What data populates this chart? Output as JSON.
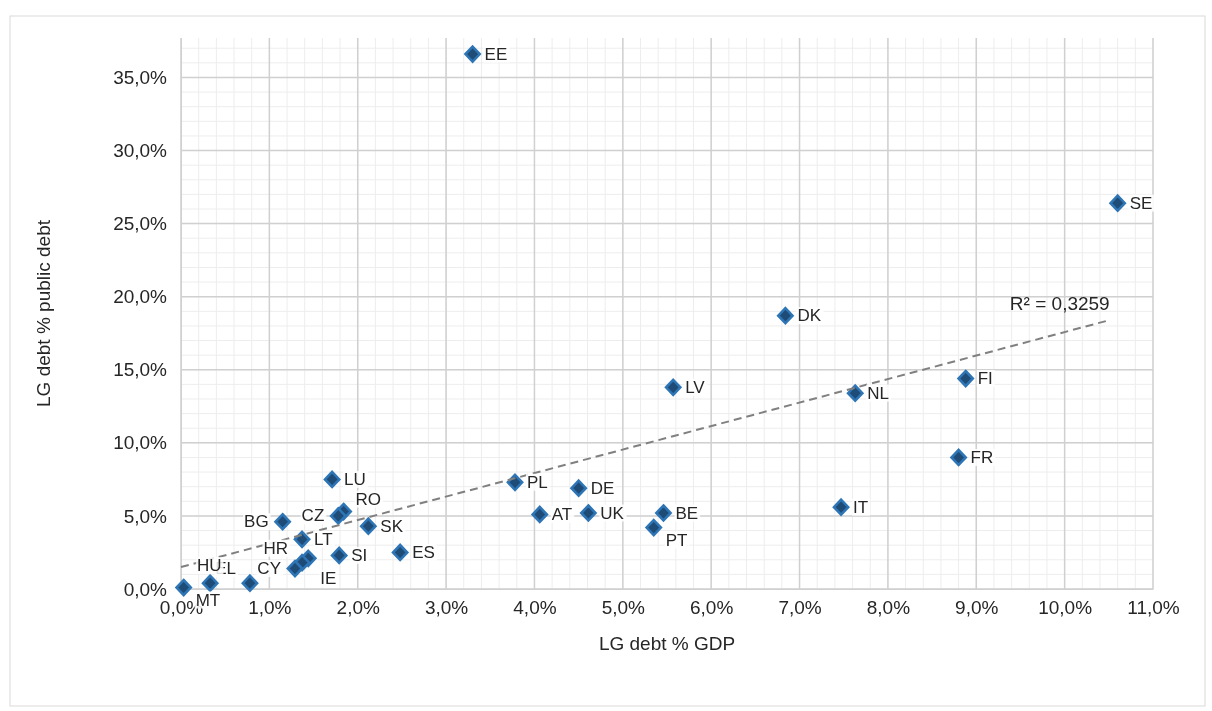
{
  "chart_data": {
    "type": "scatter",
    "xlabel": "LG debt % GDP",
    "ylabel": "LG debt % public debt",
    "xlim": [
      0,
      11
    ],
    "ylim": [
      0,
      37.7
    ],
    "xticks": [
      {
        "value": 0,
        "label": "0,0%"
      },
      {
        "value": 1,
        "label": "1,0%"
      },
      {
        "value": 2,
        "label": "2,0%"
      },
      {
        "value": 3,
        "label": "3,0%"
      },
      {
        "value": 4,
        "label": "4,0%"
      },
      {
        "value": 5,
        "label": "5,0%"
      },
      {
        "value": 6,
        "label": "6,0%"
      },
      {
        "value": 7,
        "label": "7,0%"
      },
      {
        "value": 8,
        "label": "8,0%"
      },
      {
        "value": 9,
        "label": "9,0%"
      },
      {
        "value": 10,
        "label": "10,0%"
      },
      {
        "value": 11,
        "label": "11,0%"
      }
    ],
    "yticks": [
      {
        "value": 0,
        "label": "0,0%"
      },
      {
        "value": 5,
        "label": "5,0%"
      },
      {
        "value": 10,
        "label": "10,0%"
      },
      {
        "value": 15,
        "label": "15,0%"
      },
      {
        "value": 20,
        "label": "20,0%"
      },
      {
        "value": 25,
        "label": "25,0%"
      },
      {
        "value": 30,
        "label": "30,0%"
      },
      {
        "value": 35,
        "label": "35,0%"
      }
    ],
    "grid": true,
    "series": [
      {
        "color": "#2e75b6",
        "marker": "diamond",
        "x": [
          3.3,
          10.6,
          6.84,
          5.57,
          7.63,
          8.88,
          8.8,
          7.47,
          3.78,
          4.5,
          4.06,
          4.61,
          5.46,
          5.35,
          1.71,
          1.84,
          1.78,
          2.12,
          1.15,
          1.37,
          2.48,
          1.79,
          1.44,
          1.37,
          1.29,
          0.78,
          0.33,
          0.03
        ],
        "values": [
          36.6,
          26.4,
          18.7,
          13.8,
          13.4,
          14.4,
          9.0,
          5.6,
          7.3,
          6.9,
          5.1,
          5.2,
          5.2,
          4.2,
          7.5,
          5.3,
          5.0,
          4.3,
          4.6,
          3.4,
          2.5,
          2.3,
          2.1,
          1.8,
          1.4,
          0.4,
          0.4,
          0.1
        ]
      },
      {
        "type": "line",
        "color": "#808080",
        "marker": "none",
        "line_style": "dashed",
        "x": [
          0,
          10.51
        ],
        "values": [
          1.5,
          18.4
        ]
      }
    ],
    "annotations": [
      {
        "text": "EE",
        "x": 3.3,
        "y": 36.6
      },
      {
        "text": "SE",
        "x": 10.6,
        "y": 26.4
      },
      {
        "text": "DK",
        "x": 6.84,
        "y": 18.7
      },
      {
        "text": "LV",
        "x": 5.57,
        "y": 13.8
      },
      {
        "text": "NL",
        "x": 7.63,
        "y": 13.4
      },
      {
        "text": "FI",
        "x": 8.88,
        "y": 14.4
      },
      {
        "text": "FR",
        "x": 8.8,
        "y": 9.0
      },
      {
        "text": "IT",
        "x": 7.47,
        "y": 5.6
      },
      {
        "text": "PL",
        "x": 3.78,
        "y": 7.3
      },
      {
        "text": "DE",
        "x": 4.5,
        "y": 6.9
      },
      {
        "text": "AT",
        "x": 4.06,
        "y": 5.1
      },
      {
        "text": "UK",
        "x": 4.61,
        "y": 5.2
      },
      {
        "text": "BE",
        "x": 5.46,
        "y": 5.2
      },
      {
        "text": "PT",
        "x": 5.35,
        "y": 4.2
      },
      {
        "text": "LU",
        "x": 1.71,
        "y": 7.5
      },
      {
        "text": "RO",
        "x": 1.84,
        "y": 5.3
      },
      {
        "text": "CZ",
        "x": 1.78,
        "y": 5.0
      },
      {
        "text": "SK",
        "x": 2.12,
        "y": 4.3
      },
      {
        "text": "BG",
        "x": 1.15,
        "y": 4.6
      },
      {
        "text": "LT",
        "x": 1.37,
        "y": 3.4
      },
      {
        "text": "ES",
        "x": 2.48,
        "y": 2.5
      },
      {
        "text": "SI",
        "x": 1.79,
        "y": 2.3
      },
      {
        "text": "IE",
        "x": 1.44,
        "y": 2.1
      },
      {
        "text": "HR",
        "x": 1.37,
        "y": 1.8
      },
      {
        "text": "CY",
        "x": 1.29,
        "y": 1.4
      },
      {
        "text": "EL",
        "x": 0.78,
        "y": 0.4
      },
      {
        "text": "HU",
        "x": 0.33,
        "y": 0.4
      },
      {
        "text": "MT",
        "x": 0.03,
        "y": 0.1
      },
      "R² = 0,3259"
    ]
  }
}
